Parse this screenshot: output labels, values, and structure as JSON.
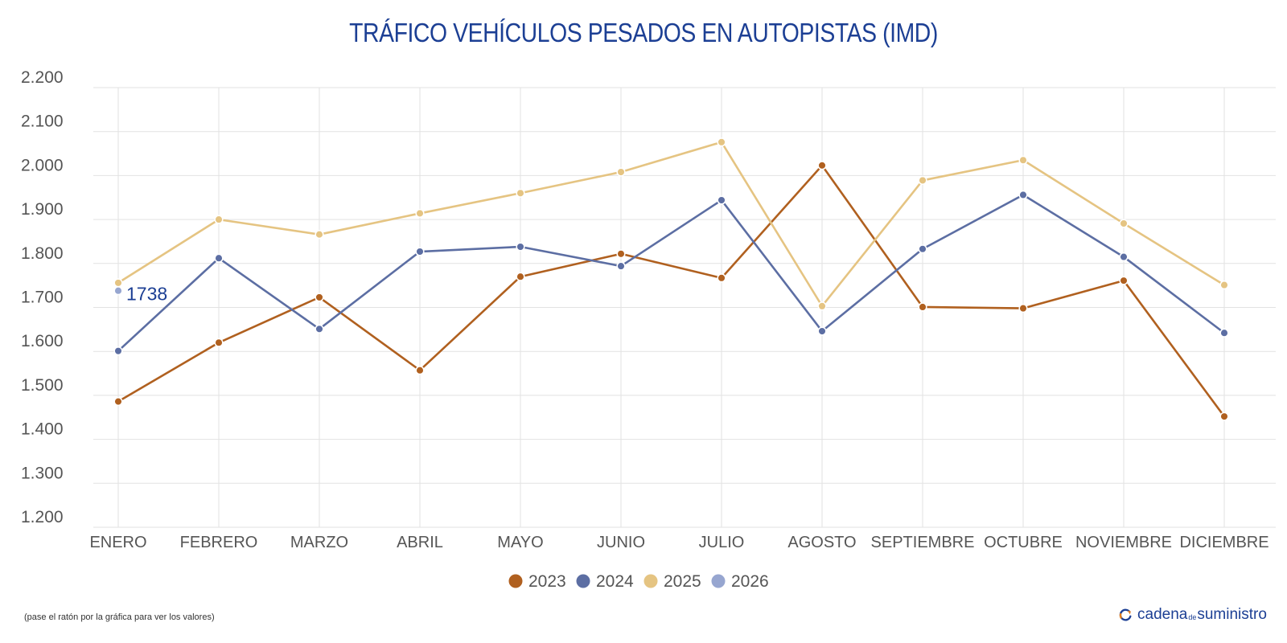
{
  "title": "TRÁFICO VEHÍCULOS PESADOS EN AUTOPISTAS (IMD)",
  "footnote": "(pase el ratón por la gráfica para ver los valores)",
  "brand": {
    "part1": "cadena",
    "part2": "de",
    "part3": "suministro",
    "icon": "refresh-arrow-icon"
  },
  "chart_data": {
    "type": "line",
    "categories": [
      "ENERO",
      "FEBRERO",
      "MARZO",
      "ABRIL",
      "MAYO",
      "JUNIO",
      "JULIO",
      "AGOSTO",
      "SEPTIEMBRE",
      "OCTUBRE",
      "NOVIEMBRE",
      "DICIEMBRE"
    ],
    "ylim": [
      1200,
      2200
    ],
    "yticks": [
      1200,
      1300,
      1400,
      1500,
      1600,
      1700,
      1800,
      1900,
      2000,
      2100,
      2200
    ],
    "ytick_labels": [
      "1.200",
      "1.300",
      "1.400",
      "1.500",
      "1.600",
      "1.700",
      "1.800",
      "1.900",
      "2.000",
      "2.100",
      "2.200"
    ],
    "grid": true,
    "legend_position": "bottom-center",
    "series": [
      {
        "name": "2023",
        "color": "#b0601f",
        "values": [
          1486,
          1620,
          1723,
          1557,
          1770,
          1822,
          1767,
          2023,
          1701,
          1698,
          1761,
          1452
        ]
      },
      {
        "name": "2024",
        "color": "#5c6ea3",
        "values": [
          1601,
          1812,
          1651,
          1827,
          1838,
          1794,
          1944,
          1646,
          1833,
          1956,
          1815,
          1642
        ]
      },
      {
        "name": "2025",
        "color": "#e5c482",
        "values": [
          1756,
          1900,
          1866,
          1914,
          1960,
          2008,
          2076,
          1703,
          1989,
          2035,
          1891,
          1751
        ]
      },
      {
        "name": "2026",
        "color": "#97a6d0",
        "values": [
          1738,
          null,
          null,
          null,
          null,
          null,
          null,
          null,
          null,
          null,
          null,
          null
        ]
      }
    ],
    "annotations": [
      {
        "series": "2026",
        "category": "ENERO",
        "text": "1738"
      }
    ]
  }
}
